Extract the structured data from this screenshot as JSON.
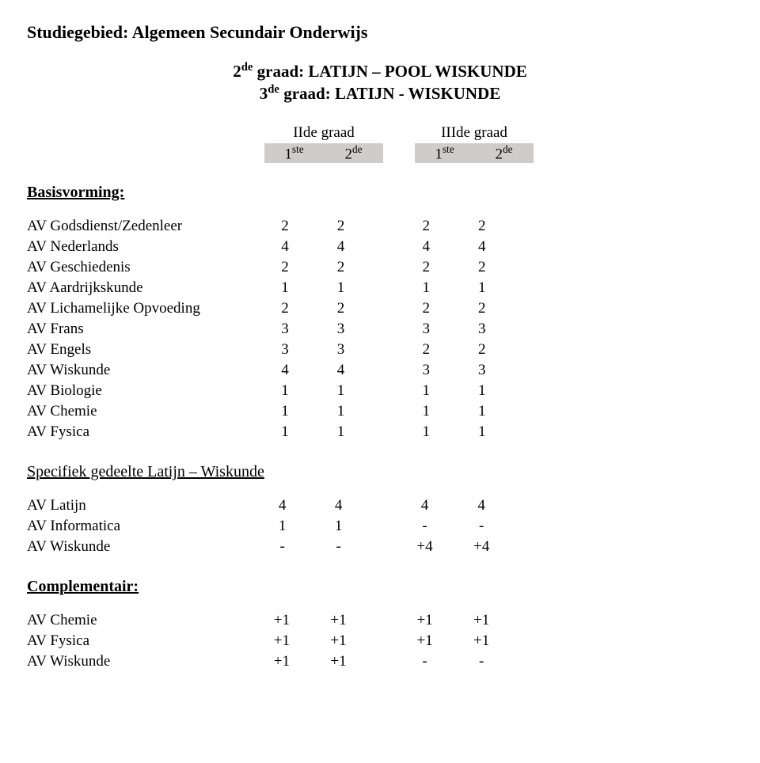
{
  "page": {
    "studyArea": "Studiegebied: Algemeen Secundair Onderwijs",
    "titleLine1Pre": "2",
    "titleLine1Sup": "de",
    "titleLine1Post": " graad: LATIJN – POOL WISKUNDE",
    "titleLine2Pre": "3",
    "titleLine2Sup": "de",
    "titleLine2Post": " graad: LATIJN - WISKUNDE",
    "gradeII": "IIde graad",
    "gradeIII": "IIIde graad",
    "col1Pre": "1",
    "col1Sup": "ste",
    "col2Pre": "2",
    "col2Sup": "de",
    "col3Pre": "1",
    "col3Sup": "ste",
    "col4Pre": "2",
    "col4Sup": "de",
    "basisvorming": "Basisvorming:",
    "basisRows": [
      {
        "label": "AV Godsdienst/Zedenleer",
        "v": [
          "2",
          "2",
          "2",
          "2"
        ]
      },
      {
        "label": "AV Nederlands",
        "v": [
          "4",
          "4",
          "4",
          "4"
        ]
      },
      {
        "label": "AV Geschiedenis",
        "v": [
          "2",
          "2",
          "2",
          "2"
        ]
      },
      {
        "label": "AV Aardrijkskunde",
        "v": [
          "1",
          "1",
          "1",
          "1"
        ]
      },
      {
        "label": "AV Lichamelijke Opvoeding",
        "v": [
          "2",
          "2",
          "2",
          "2"
        ]
      },
      {
        "label": "AV Frans",
        "v": [
          "3",
          "3",
          "3",
          "3"
        ]
      },
      {
        "label": "AV Engels",
        "v": [
          "3",
          "3",
          "2",
          "2"
        ]
      },
      {
        "label": "AV Wiskunde",
        "v": [
          "4",
          "4",
          "3",
          "3"
        ]
      },
      {
        "label": "AV Biologie",
        "v": [
          "1",
          "1",
          "1",
          "1"
        ]
      },
      {
        "label": "AV Chemie",
        "v": [
          "1",
          "1",
          "1",
          "1"
        ]
      },
      {
        "label": "AV Fysica",
        "v": [
          "1",
          "1",
          "1",
          "1"
        ]
      }
    ],
    "specifiekTitle": "Specifiek gedeelte Latijn – Wiskunde",
    "specifiekRows": [
      {
        "label": "AV Latijn",
        "v": [
          "4",
          "4",
          "4",
          "4"
        ]
      },
      {
        "label": "AV Informatica",
        "v": [
          "1",
          "1",
          "-",
          "-"
        ]
      },
      {
        "label": "AV Wiskunde",
        "v": [
          "-",
          "-",
          "+4",
          "+4"
        ]
      }
    ],
    "complementairTitle": "Complementair:",
    "complementairRows": [
      {
        "label": "AV Chemie",
        "v": [
          "+1",
          "+1",
          "+1",
          "+1"
        ]
      },
      {
        "label": "AV Fysica",
        "v": [
          "+1",
          "+1",
          "+1",
          "+1"
        ]
      },
      {
        "label": "AV Wiskunde",
        "v": [
          "+1",
          "+1",
          "-",
          "-"
        ]
      }
    ]
  },
  "style": {
    "background": "#ffffff",
    "text": "#000000",
    "shadedHeader": "#d0cccc",
    "fontFamily": "Times New Roman"
  }
}
